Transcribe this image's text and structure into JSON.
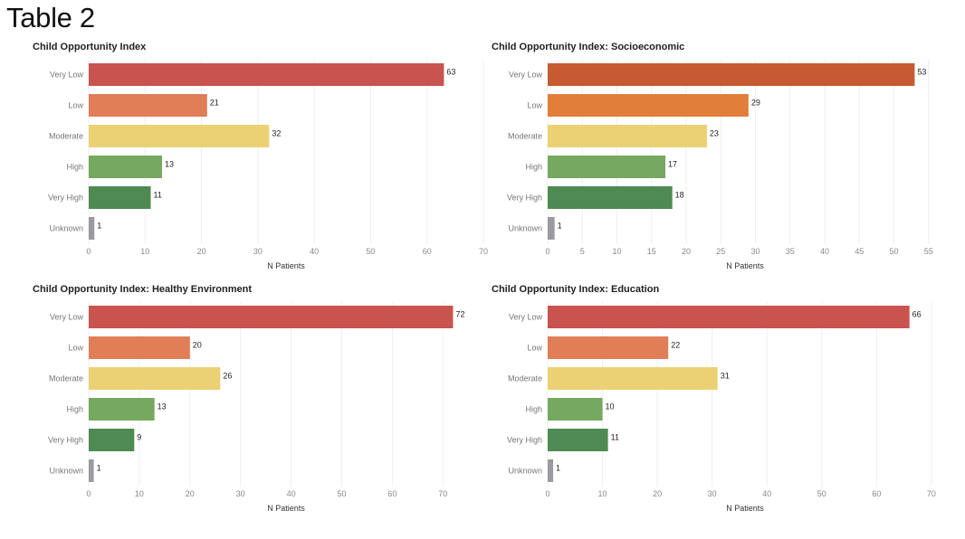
{
  "page": {
    "title": "Table 2"
  },
  "chart_data": [
    {
      "type": "bar",
      "orientation": "horizontal",
      "title": "Child Opportunity Index",
      "categories": [
        "Very Low",
        "Low",
        "Moderate",
        "High",
        "Very High",
        "Unknown"
      ],
      "values": [
        63,
        21,
        32,
        13,
        11,
        1
      ],
      "colors": [
        "#c9534f",
        "#e07e57",
        "#ecd174",
        "#76a85f",
        "#4f8a52",
        "#9a9a9f"
      ],
      "xlabel": "N Patients",
      "ylabel": "",
      "xlim": [
        0,
        70
      ],
      "xticks": [
        0,
        10,
        20,
        30,
        40,
        50,
        60,
        70
      ],
      "grid": true
    },
    {
      "type": "bar",
      "orientation": "horizontal",
      "title": "Child Opportunity Index: Socioeconomic",
      "categories": [
        "Very Low",
        "Low",
        "Moderate",
        "High",
        "Very High",
        "Unknown"
      ],
      "values": [
        53,
        29,
        23,
        17,
        18,
        1
      ],
      "colors": [
        "#c55a33",
        "#e17f3a",
        "#ecd174",
        "#76a85f",
        "#4f8a52",
        "#9a9a9f"
      ],
      "xlabel": "N Patients",
      "ylabel": "",
      "xlim": [
        0,
        57
      ],
      "xticks": [
        0,
        5,
        10,
        15,
        20,
        25,
        30,
        35,
        40,
        45,
        50,
        55
      ],
      "grid": true
    },
    {
      "type": "bar",
      "orientation": "horizontal",
      "title": "Child Opportunity Index: Healthy Environment",
      "categories": [
        "Very Low",
        "Low",
        "Moderate",
        "High",
        "Very High",
        "Unknown"
      ],
      "values": [
        72,
        20,
        26,
        13,
        9,
        1
      ],
      "colors": [
        "#c9534f",
        "#e07e57",
        "#ecd174",
        "#76a85f",
        "#4f8a52",
        "#9a9a9f"
      ],
      "xlabel": "N Patients",
      "ylabel": "",
      "xlim": [
        0,
        78
      ],
      "xticks": [
        0,
        10,
        20,
        30,
        40,
        50,
        60,
        70
      ],
      "grid": true
    },
    {
      "type": "bar",
      "orientation": "horizontal",
      "title": "Child Opportunity Index: Education",
      "categories": [
        "Very Low",
        "Low",
        "Moderate",
        "High",
        "Very High",
        "Unknown"
      ],
      "values": [
        66,
        22,
        31,
        10,
        11,
        1
      ],
      "colors": [
        "#c9534f",
        "#e07e57",
        "#ecd174",
        "#76a85f",
        "#4f8a52",
        "#9a9a9f"
      ],
      "xlabel": "N Patients",
      "ylabel": "",
      "xlim": [
        0,
        72
      ],
      "xticks": [
        0,
        10,
        20,
        30,
        40,
        50,
        60,
        70
      ],
      "grid": true
    }
  ]
}
